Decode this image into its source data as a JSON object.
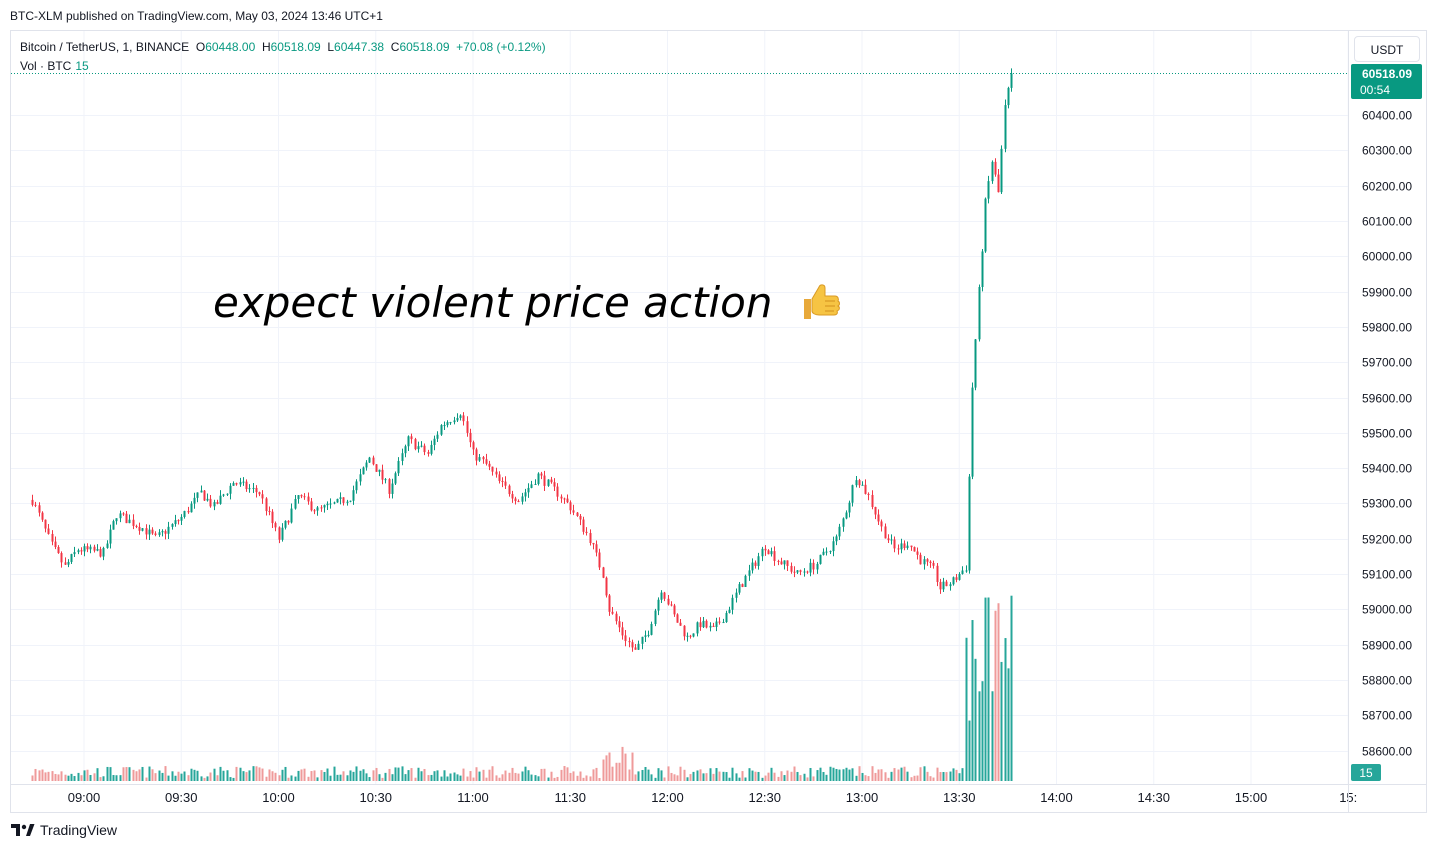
{
  "publish_line": "BTC-XLM published on TradingView.com, May 03, 2024 13:46 UTC+1",
  "legend": {
    "symbol": "Bitcoin / TetherUS, 1, BINANCE",
    "open_label": "O",
    "open": "60448.00",
    "high_label": "H",
    "high": "60518.09",
    "low_label": "L",
    "low": "60447.38",
    "close_label": "C",
    "close": "60518.09",
    "change": "+70.08 (+0.12%)",
    "vol_label": "Vol · BTC",
    "vol_value": "15"
  },
  "currency_button": "USDT",
  "annotation": "expect violent price action",
  "footer_brand": "TradingView",
  "price_badge": {
    "price": "60518.09",
    "countdown": "00:54"
  },
  "volume_badge": "15",
  "colors": {
    "up": "#089981",
    "down": "#f23645",
    "vol_up": "#26a69a",
    "vol_down": "#ef9a9a",
    "grid": "#f0f3fa"
  },
  "chart_data": {
    "type": "candlestick",
    "interval": "1 minute",
    "y_ticks": [
      "60400.00",
      "60300.00",
      "60200.00",
      "60100.00",
      "60000.00",
      "59900.00",
      "59800.00",
      "59700.00",
      "59600.00",
      "59500.00",
      "59400.00",
      "59300.00",
      "59200.00",
      "59100.00",
      "59000.00",
      "58900.00",
      "58800.00",
      "58700.00",
      "58600.00"
    ],
    "x_ticks": [
      "09:00",
      "09:30",
      "10:00",
      "10:30",
      "11:00",
      "11:30",
      "12:00",
      "12:30",
      "13:00",
      "13:30",
      "14:00",
      "14:30",
      "15:00",
      "15:"
    ],
    "ylim": [
      58550,
      60580
    ],
    "last_price": 60518.09,
    "start_time": "08:44",
    "end_time": "13:46",
    "close_path": [
      [
        "08:44",
        59310
      ],
      [
        "08:50",
        59180
      ],
      [
        "08:54",
        59120
      ],
      [
        "08:58",
        59170
      ],
      [
        "09:06",
        59160
      ],
      [
        "09:10",
        59270
      ],
      [
        "09:18",
        59230
      ],
      [
        "09:22",
        59200
      ],
      [
        "09:30",
        59260
      ],
      [
        "09:36",
        59330
      ],
      [
        "09:40",
        59290
      ],
      [
        "09:46",
        59360
      ],
      [
        "09:54",
        59330
      ],
      [
        "10:00",
        59200
      ],
      [
        "10:06",
        59320
      ],
      [
        "10:12",
        59280
      ],
      [
        "10:18",
        59300
      ],
      [
        "10:22",
        59320
      ],
      [
        "10:28",
        59430
      ],
      [
        "10:34",
        59340
      ],
      [
        "10:40",
        59480
      ],
      [
        "10:46",
        59440
      ],
      [
        "10:50",
        59520
      ],
      [
        "10:56",
        59560
      ],
      [
        "11:00",
        59440
      ],
      [
        "11:04",
        59410
      ],
      [
        "11:08",
        59360
      ],
      [
        "11:14",
        59310
      ],
      [
        "11:20",
        59380
      ],
      [
        "11:26",
        59330
      ],
      [
        "11:30",
        59290
      ],
      [
        "11:36",
        59200
      ],
      [
        "11:40",
        59100
      ],
      [
        "11:42",
        59000
      ],
      [
        "11:46",
        58930
      ],
      [
        "11:50",
        58880
      ],
      [
        "11:54",
        58940
      ],
      [
        "11:58",
        59060
      ],
      [
        "12:02",
        58980
      ],
      [
        "12:06",
        58920
      ],
      [
        "12:10",
        58960
      ],
      [
        "12:14",
        58940
      ],
      [
        "12:18",
        58990
      ],
      [
        "12:22",
        59060
      ],
      [
        "12:26",
        59120
      ],
      [
        "12:30",
        59180
      ],
      [
        "12:34",
        59140
      ],
      [
        "12:40",
        59100
      ],
      [
        "12:46",
        59130
      ],
      [
        "12:52",
        59200
      ],
      [
        "12:56",
        59310
      ],
      [
        "12:58",
        59380
      ],
      [
        "13:02",
        59320
      ],
      [
        "13:06",
        59230
      ],
      [
        "13:10",
        59170
      ],
      [
        "13:14",
        59190
      ],
      [
        "13:18",
        59140
      ],
      [
        "13:22",
        59110
      ],
      [
        "13:24",
        59060
      ],
      [
        "13:28",
        59080
      ],
      [
        "13:30",
        59100
      ],
      [
        "13:32",
        59120
      ],
      [
        "13:34",
        59630
      ],
      [
        "13:36",
        59900
      ],
      [
        "13:38",
        60150
      ],
      [
        "13:40",
        60270
      ],
      [
        "13:42",
        60180
      ],
      [
        "13:44",
        60420
      ],
      [
        "13:46",
        60518.09
      ]
    ],
    "volume_notes": "Low volume until 13:32; spike bars up to ~520 px-scale near 13:32-13:46"
  }
}
